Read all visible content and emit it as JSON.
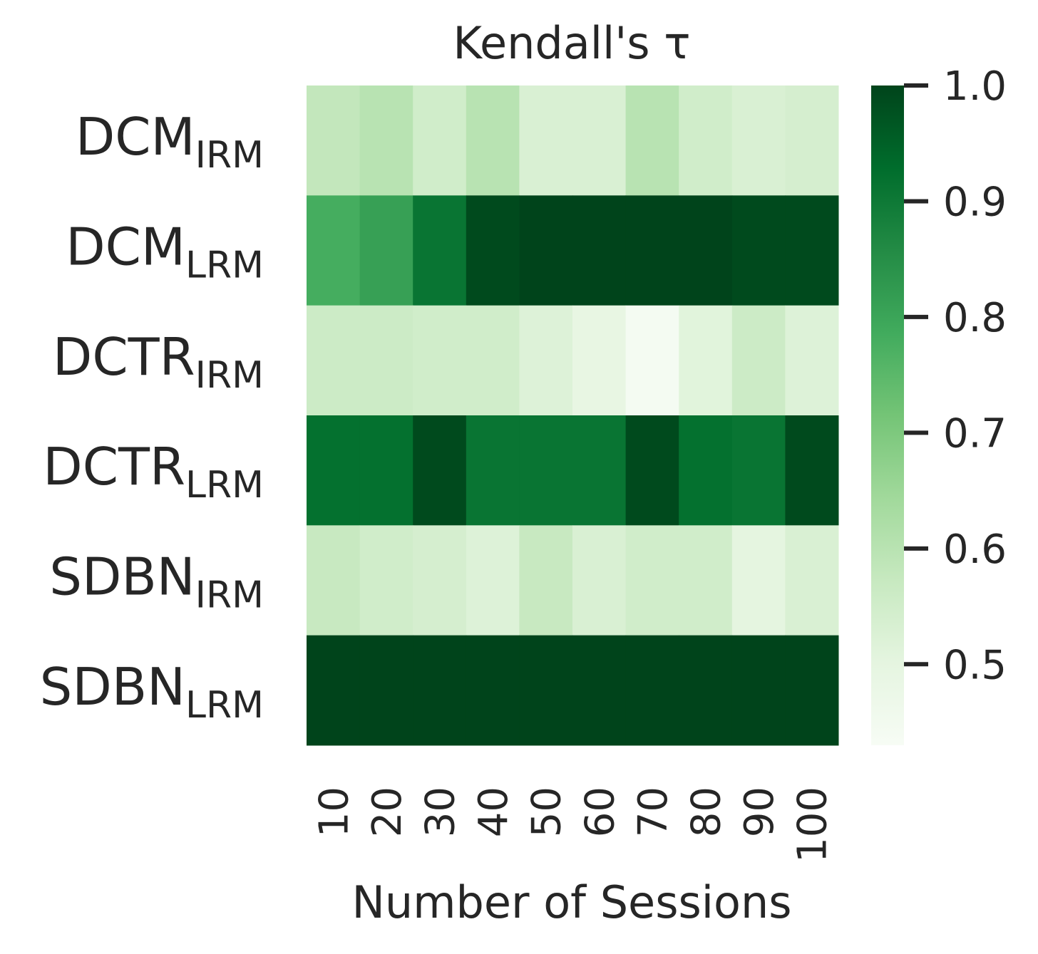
{
  "chart_data": {
    "type": "heatmap",
    "title": "Kendall's τ",
    "xlabel": "Number of Sessions",
    "ylabel": "",
    "x_categories": [
      "10",
      "20",
      "30",
      "40",
      "50",
      "60",
      "70",
      "80",
      "90",
      "100"
    ],
    "y_categories": [
      {
        "base": "DCM",
        "sub": "IRM"
      },
      {
        "base": "DCM",
        "sub": "LRM"
      },
      {
        "base": "DCTR",
        "sub": "IRM"
      },
      {
        "base": "DCTR",
        "sub": "LRM"
      },
      {
        "base": "SDBN",
        "sub": "IRM"
      },
      {
        "base": "SDBN",
        "sub": "LRM"
      }
    ],
    "values": [
      [
        0.58,
        0.6,
        0.55,
        0.6,
        0.53,
        0.53,
        0.6,
        0.55,
        0.53,
        0.54
      ],
      [
        0.78,
        0.81,
        0.91,
        0.99,
        1.0,
        1.0,
        1.0,
        1.0,
        0.99,
        0.99
      ],
      [
        0.56,
        0.56,
        0.55,
        0.55,
        0.52,
        0.49,
        0.44,
        0.51,
        0.56,
        0.52
      ],
      [
        0.92,
        0.92,
        0.99,
        0.91,
        0.91,
        0.91,
        0.99,
        0.92,
        0.91,
        0.99
      ],
      [
        0.57,
        0.55,
        0.54,
        0.52,
        0.57,
        0.53,
        0.55,
        0.55,
        0.5,
        0.53
      ],
      [
        1.0,
        1.0,
        1.0,
        1.0,
        1.0,
        1.0,
        1.0,
        1.0,
        1.0,
        1.0
      ]
    ],
    "colorbar": {
      "vmin": 0.43,
      "vmax": 1.0,
      "ticks": [
        "1.0",
        "0.9",
        "0.8",
        "0.7",
        "0.6",
        "0.5"
      ],
      "colormap": "Greens"
    },
    "colormap_stops": [
      "#f7fcf5",
      "#e5f5e0",
      "#c7e9c0",
      "#a1d99b",
      "#74c476",
      "#41ab5d",
      "#238b45",
      "#006d2c",
      "#00441b"
    ]
  }
}
